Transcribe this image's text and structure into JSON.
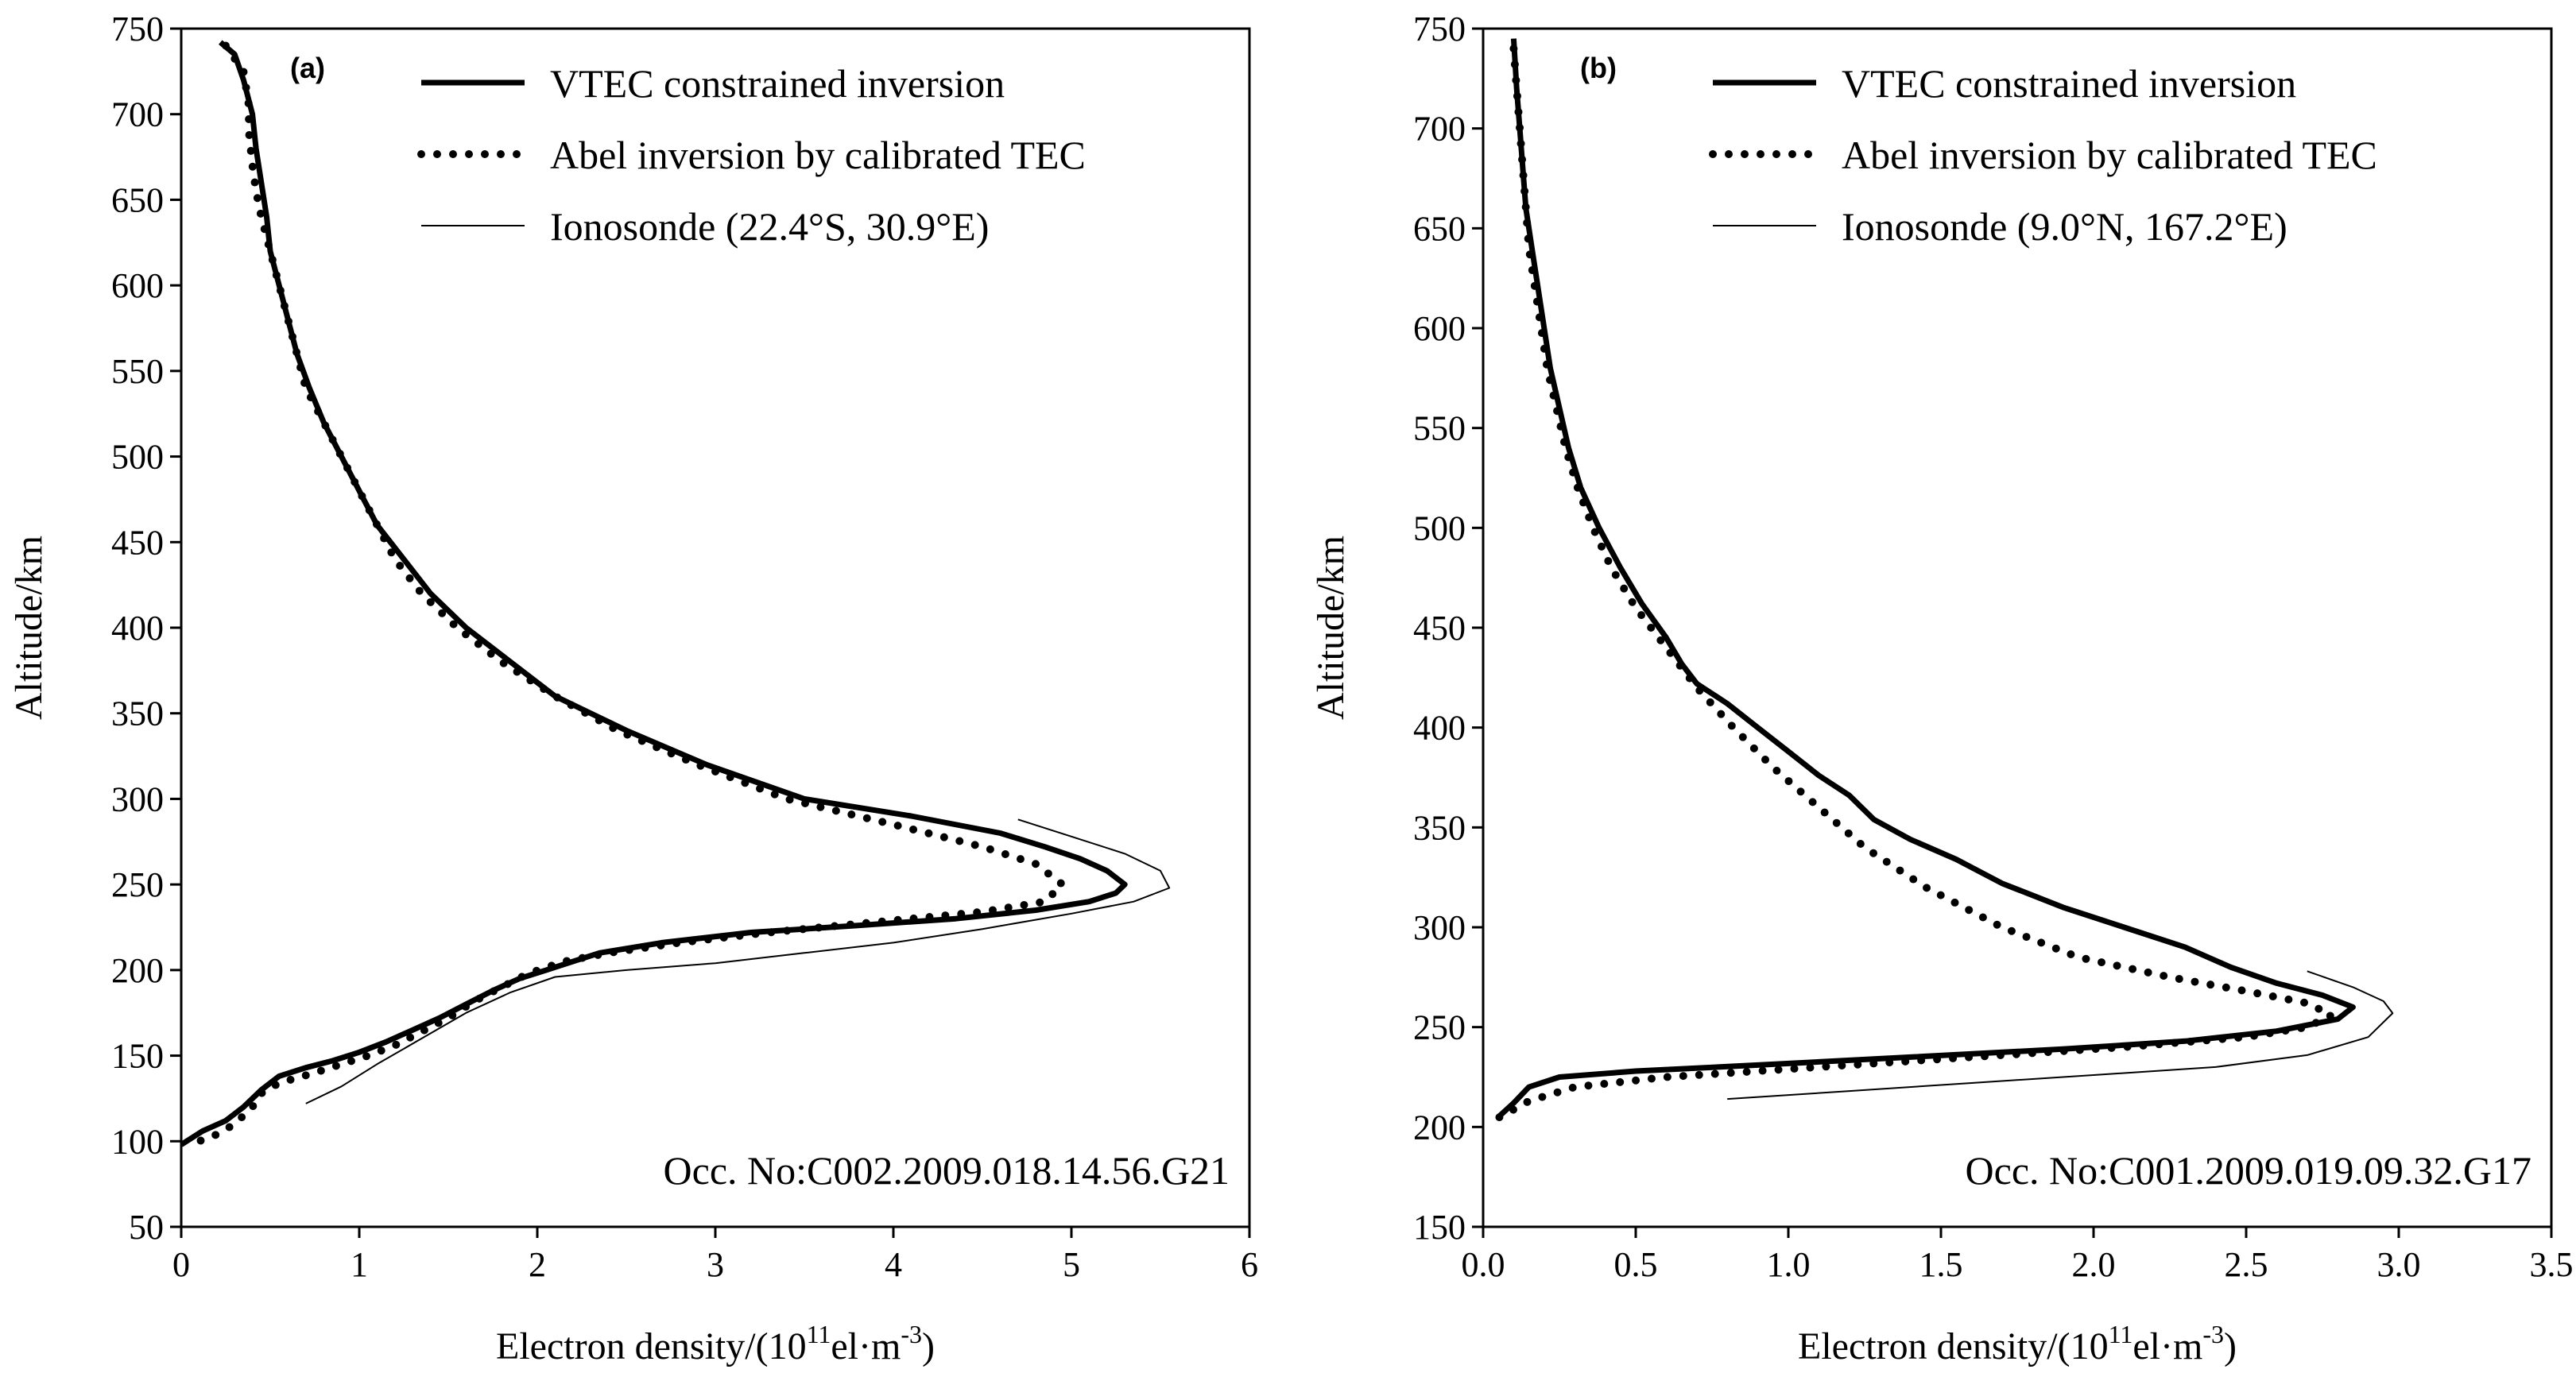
{
  "chart_data": [
    {
      "type": "line",
      "panel_label": "(a)",
      "xlabel_main": "Electron density/(10",
      "xlabel_sup1": "11",
      "xlabel_mid": "el·m",
      "xlabel_sup2": "-3",
      "xlabel_end": ")",
      "ylabel": "Altitude/km",
      "xlim": [
        0,
        6
      ],
      "ylim": [
        50,
        750
      ],
      "xticks": [
        0,
        1,
        2,
        3,
        4,
        5,
        6
      ],
      "yticks": [
        50,
        100,
        150,
        200,
        250,
        300,
        350,
        400,
        450,
        500,
        550,
        600,
        650,
        700,
        750
      ],
      "xtick_labels": [
        "0",
        "1",
        "2",
        "3",
        "4",
        "5",
        "6"
      ],
      "ytick_labels": [
        "50",
        "100",
        "150",
        "200",
        "250",
        "300",
        "350",
        "400",
        "450",
        "500",
        "550",
        "600",
        "650",
        "700",
        "750"
      ],
      "legend_position": "top-right",
      "annotation": "Occ. No:C002.2009.018.14.56.G21",
      "series": [
        {
          "name": "VTEC constrained inversion",
          "style": "thick",
          "points": [
            [
              0.22,
              742
            ],
            [
              0.3,
              735
            ],
            [
              0.35,
              720
            ],
            [
              0.4,
              700
            ],
            [
              0.42,
              680
            ],
            [
              0.45,
              660
            ],
            [
              0.48,
              640
            ],
            [
              0.5,
              620
            ],
            [
              0.55,
              600
            ],
            [
              0.6,
              580
            ],
            [
              0.65,
              560
            ],
            [
              0.72,
              540
            ],
            [
              0.8,
              520
            ],
            [
              0.9,
              500
            ],
            [
              1.0,
              480
            ],
            [
              1.1,
              460
            ],
            [
              1.25,
              440
            ],
            [
              1.4,
              420
            ],
            [
              1.6,
              400
            ],
            [
              1.85,
              380
            ],
            [
              2.1,
              360
            ],
            [
              2.5,
              340
            ],
            [
              2.95,
              320
            ],
            [
              3.5,
              300
            ],
            [
              4.1,
              290
            ],
            [
              4.6,
              280
            ],
            [
              4.85,
              272
            ],
            [
              5.05,
              265
            ],
            [
              5.2,
              258
            ],
            [
              5.3,
              250
            ],
            [
              5.25,
              245
            ],
            [
              5.1,
              240
            ],
            [
              4.8,
              235
            ],
            [
              4.35,
              230
            ],
            [
              3.8,
              226
            ],
            [
              3.2,
              222
            ],
            [
              2.7,
              216
            ],
            [
              2.35,
              210
            ],
            [
              2.2,
              205
            ],
            [
              2.05,
              200
            ],
            [
              1.9,
              195
            ],
            [
              1.75,
              188
            ],
            [
              1.6,
              180
            ],
            [
              1.45,
              172
            ],
            [
              1.3,
              165
            ],
            [
              1.15,
              158
            ],
            [
              1.0,
              152
            ],
            [
              0.85,
              147
            ],
            [
              0.7,
              143
            ],
            [
              0.55,
              138
            ],
            [
              0.45,
              130
            ],
            [
              0.35,
              120
            ],
            [
              0.25,
              112
            ],
            [
              0.12,
              106
            ],
            [
              0.0,
              98
            ]
          ]
        },
        {
          "name": "Abel inversion by calibrated TEC",
          "style": "dotted",
          "points": [
            [
              0.25,
              740
            ],
            [
              0.35,
              725
            ],
            [
              0.38,
              705
            ],
            [
              0.38,
              690
            ],
            [
              0.4,
              670
            ],
            [
              0.42,
              655
            ],
            [
              0.45,
              640
            ],
            [
              0.5,
              620
            ],
            [
              0.55,
              600
            ],
            [
              0.6,
              580
            ],
            [
              0.65,
              560
            ],
            [
              0.7,
              540
            ],
            [
              0.8,
              520
            ],
            [
              0.9,
              500
            ],
            [
              1.0,
              480
            ],
            [
              1.1,
              460
            ],
            [
              1.2,
              440
            ],
            [
              1.35,
              420
            ],
            [
              1.55,
              400
            ],
            [
              1.8,
              380
            ],
            [
              2.1,
              360
            ],
            [
              2.45,
              340
            ],
            [
              2.9,
              320
            ],
            [
              3.4,
              300
            ],
            [
              4.0,
              285
            ],
            [
              4.5,
              272
            ],
            [
              4.8,
              262
            ],
            [
              4.95,
              250
            ],
            [
              4.85,
              240
            ],
            [
              4.5,
              234
            ],
            [
              3.9,
              228
            ],
            [
              3.3,
              222
            ],
            [
              2.8,
              216
            ],
            [
              2.4,
              210
            ],
            [
              2.15,
              205
            ],
            [
              1.95,
              198
            ],
            [
              1.8,
              190
            ],
            [
              1.65,
              182
            ],
            [
              1.5,
              172
            ],
            [
              1.35,
              164
            ],
            [
              1.2,
              156
            ],
            [
              1.05,
              150
            ],
            [
              0.9,
              145
            ],
            [
              0.75,
              140
            ],
            [
              0.55,
              134
            ],
            [
              0.45,
              128
            ],
            [
              0.4,
              120
            ],
            [
              0.3,
              110
            ],
            [
              0.2,
              104
            ],
            [
              0.1,
              100
            ]
          ]
        },
        {
          "name": "Ionosonde (22.4°S, 30.9°E)",
          "style": "thin",
          "points": [
            [
              0.7,
              122
            ],
            [
              0.9,
              132
            ],
            [
              1.1,
              145
            ],
            [
              1.35,
              160
            ],
            [
              1.6,
              175
            ],
            [
              1.85,
              187
            ],
            [
              2.1,
              196
            ],
            [
              2.5,
              200
            ],
            [
              3.0,
              204
            ],
            [
              3.5,
              210
            ],
            [
              4.0,
              216
            ],
            [
              4.5,
              224
            ],
            [
              5.0,
              233
            ],
            [
              5.35,
              240
            ],
            [
              5.55,
              248
            ],
            [
              5.5,
              258
            ],
            [
              5.3,
              268
            ],
            [
              5.0,
              278
            ],
            [
              4.7,
              288
            ]
          ]
        }
      ]
    },
    {
      "type": "line",
      "panel_label": "(b)",
      "xlabel_main": "Electron density/(10",
      "xlabel_sup1": "11",
      "xlabel_mid": "el·m",
      "xlabel_sup2": "-3",
      "xlabel_end": ")",
      "ylabel": "Altitude/km",
      "xlim": [
        0.0,
        3.5
      ],
      "ylim": [
        150,
        750
      ],
      "xticks": [
        0.0,
        0.5,
        1.0,
        1.5,
        2.0,
        2.5,
        3.0,
        3.5
      ],
      "yticks": [
        150,
        200,
        250,
        300,
        350,
        400,
        450,
        500,
        550,
        600,
        650,
        700,
        750
      ],
      "xtick_labels": [
        "0.0",
        "0.5",
        "1.0",
        "1.5",
        "2.0",
        "2.5",
        "3.0",
        "3.5"
      ],
      "ytick_labels": [
        "150",
        "200",
        "250",
        "300",
        "350",
        "400",
        "450",
        "500",
        "550",
        "600",
        "650",
        "700",
        "750"
      ],
      "legend_position": "top-right",
      "annotation": "Occ. No:C001.2009.019.09.32.G17",
      "series": [
        {
          "name": "VTEC constrained inversion",
          "style": "thick",
          "points": [
            [
              0.1,
              745
            ],
            [
              0.11,
              720
            ],
            [
              0.12,
              700
            ],
            [
              0.13,
              680
            ],
            [
              0.14,
              660
            ],
            [
              0.16,
              640
            ],
            [
              0.18,
              620
            ],
            [
              0.2,
              600
            ],
            [
              0.22,
              580
            ],
            [
              0.25,
              560
            ],
            [
              0.28,
              540
            ],
            [
              0.32,
              520
            ],
            [
              0.38,
              500
            ],
            [
              0.45,
              480
            ],
            [
              0.52,
              462
            ],
            [
              0.6,
              445
            ],
            [
              0.65,
              432
            ],
            [
              0.7,
              422
            ],
            [
              0.8,
              412
            ],
            [
              0.9,
              400
            ],
            [
              1.0,
              388
            ],
            [
              1.1,
              376
            ],
            [
              1.2,
              366
            ],
            [
              1.28,
              354
            ],
            [
              1.4,
              344
            ],
            [
              1.55,
              334
            ],
            [
              1.7,
              322
            ],
            [
              1.9,
              310
            ],
            [
              2.1,
              300
            ],
            [
              2.3,
              290
            ],
            [
              2.45,
              280
            ],
            [
              2.6,
              272
            ],
            [
              2.75,
              266
            ],
            [
              2.85,
              260
            ],
            [
              2.8,
              254
            ],
            [
              2.6,
              248
            ],
            [
              2.3,
              243
            ],
            [
              1.9,
              239
            ],
            [
              1.4,
              235
            ],
            [
              0.9,
              231
            ],
            [
              0.5,
              228
            ],
            [
              0.25,
              225
            ],
            [
              0.15,
              220
            ],
            [
              0.1,
              212
            ],
            [
              0.05,
              205
            ]
          ]
        },
        {
          "name": "Abel inversion by calibrated TEC",
          "style": "dotted",
          "points": [
            [
              0.1,
              740
            ],
            [
              0.11,
              720
            ],
            [
              0.12,
              700
            ],
            [
              0.13,
              680
            ],
            [
              0.14,
              660
            ],
            [
              0.15,
              640
            ],
            [
              0.17,
              620
            ],
            [
              0.19,
              600
            ],
            [
              0.21,
              580
            ],
            [
              0.24,
              560
            ],
            [
              0.27,
              540
            ],
            [
              0.31,
              520
            ],
            [
              0.36,
              500
            ],
            [
              0.42,
              480
            ],
            [
              0.5,
              460
            ],
            [
              0.6,
              440
            ],
            [
              0.7,
              420
            ],
            [
              0.82,
              400
            ],
            [
              0.95,
              380
            ],
            [
              1.1,
              360
            ],
            [
              1.25,
              340
            ],
            [
              1.45,
              320
            ],
            [
              1.7,
              300
            ],
            [
              1.95,
              285
            ],
            [
              2.25,
              275
            ],
            [
              2.5,
              268
            ],
            [
              2.7,
              262
            ],
            [
              2.78,
              256
            ],
            [
              2.7,
              250
            ],
            [
              2.5,
              245
            ],
            [
              2.1,
              240
            ],
            [
              1.6,
              235
            ],
            [
              1.1,
              230
            ],
            [
              0.6,
              225
            ],
            [
              0.3,
              220
            ],
            [
              0.15,
              213
            ],
            [
              0.08,
              207
            ],
            [
              0.03,
              203
            ]
          ]
        },
        {
          "name": "Ionosonde (9.0°N, 167.2°E)",
          "style": "thin",
          "points": [
            [
              0.8,
              214
            ],
            [
              1.2,
              218
            ],
            [
              1.6,
              222
            ],
            [
              2.0,
              226
            ],
            [
              2.4,
              230
            ],
            [
              2.7,
              236
            ],
            [
              2.9,
              245
            ],
            [
              2.98,
              257
            ],
            [
              2.95,
              263
            ],
            [
              2.85,
              270
            ],
            [
              2.7,
              278
            ]
          ]
        }
      ]
    }
  ]
}
